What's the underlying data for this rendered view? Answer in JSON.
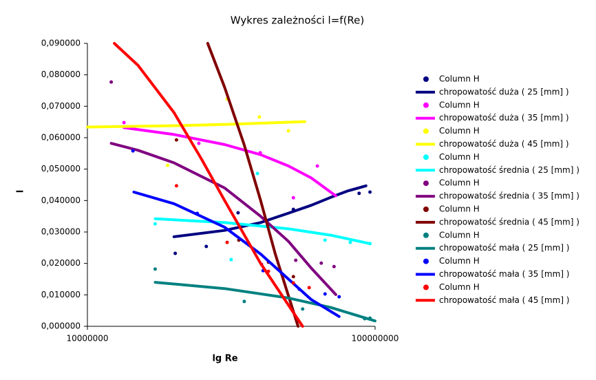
{
  "chart_data": {
    "type": "scatter",
    "title": "Wykres zależności l=f(Re)",
    "x_label": "lg Re",
    "y_label": "l",
    "x_log": true,
    "grid": false,
    "legend": "right",
    "xlim": [
      10000000,
      100000000
    ],
    "xticks": [
      10000000,
      100000000
    ],
    "ylim": [
      0,
      0.09
    ],
    "yticks": [
      {
        "value": 0,
        "label": "0,000000"
      },
      {
        "value": 0.01,
        "label": "0,010000"
      },
      {
        "value": 0.02,
        "label": "0,020000"
      },
      {
        "value": 0.03,
        "label": "0,030000"
      },
      {
        "value": 0.04,
        "label": "0,040000"
      },
      {
        "value": 0.05,
        "label": "0,050000"
      },
      {
        "value": 0.06,
        "label": "0,060000"
      },
      {
        "value": 0.07,
        "label": "0,070000"
      },
      {
        "value": 0.08,
        "label": "0,080000"
      },
      {
        "value": 0.09,
        "label": "0,090000"
      }
    ],
    "series": [
      {
        "name": "Column H",
        "color": "#000080",
        "line": false,
        "x": [
          20200000,
          25900000,
          33400000,
          52000000,
          88000000,
          96000000
        ],
        "values": [
          0.0232,
          0.0254,
          0.0361,
          0.0372,
          0.0423,
          0.0427
        ]
      },
      {
        "name": "chropowatość duża ( 25 [mm] )",
        "color": "#000080",
        "line": true,
        "x": [
          20000000,
          30000000,
          40000000,
          50000000,
          60000000,
          70000000,
          80000000,
          93000000
        ],
        "values": [
          0.0285,
          0.0305,
          0.033,
          0.036,
          0.0385,
          0.041,
          0.043,
          0.0447
        ]
      },
      {
        "name": "Column H",
        "color": "#ff00ff",
        "line": false,
        "x": [
          13400000,
          24400000,
          39900000,
          52000000,
          63000000
        ],
        "values": [
          0.0648,
          0.0582,
          0.0552,
          0.0409,
          0.051
        ]
      },
      {
        "name": "chropowatość duża ( 35 [mm] )",
        "color": "#ff00ff",
        "line": true,
        "x": [
          13400000,
          20000000,
          30000000,
          40000000,
          50000000,
          60000000,
          73000000
        ],
        "values": [
          0.0632,
          0.061,
          0.0578,
          0.0546,
          0.051,
          0.0472,
          0.0415
        ]
      },
      {
        "name": "Column H",
        "color": "#ffff00",
        "line": false,
        "x": [
          19000000,
          30600000,
          39600000,
          50000000
        ],
        "values": [
          0.0512,
          0.0723,
          0.0666,
          0.0622
        ]
      },
      {
        "name": "chropowatość duża ( 45 [mm] )",
        "color": "#ffff00",
        "line": true,
        "x": [
          10000000,
          20000000,
          30000000,
          40000000,
          57000000
        ],
        "values": [
          0.0634,
          0.0638,
          0.0642,
          0.0646,
          0.0651
        ]
      },
      {
        "name": "Column H",
        "color": "#00ffff",
        "line": false,
        "x": [
          17200000,
          31600000,
          39000000,
          67000000,
          82000000,
          96000000
        ],
        "values": [
          0.0326,
          0.0212,
          0.0486,
          0.0274,
          0.0267,
          0.0263
        ]
      },
      {
        "name": "chropowatość średnia ( 25 [mm] )",
        "color": "#00ffff",
        "line": true,
        "x": [
          17200000,
          30000000,
          50000000,
          70000000,
          96000000
        ],
        "values": [
          0.0342,
          0.033,
          0.031,
          0.029,
          0.0263
        ]
      },
      {
        "name": "Column H",
        "color": "#800080",
        "line": false,
        "x": [
          12100000,
          40300000,
          53000000,
          65000000,
          72000000
        ],
        "values": [
          0.0777,
          0.0197,
          0.021,
          0.0201,
          0.019
        ]
      },
      {
        "name": "chropowatość średnia ( 35 [mm] )",
        "color": "#800080",
        "line": true,
        "x": [
          12100000,
          15000000,
          20000000,
          30000000,
          40000000,
          50000000,
          60000000,
          73000000
        ],
        "values": [
          0.0582,
          0.056,
          0.052,
          0.044,
          0.035,
          0.027,
          0.0185,
          0.0101
        ]
      },
      {
        "name": "Column H",
        "color": "#800000",
        "line": false,
        "x": [
          20400000,
          33600000,
          42600000,
          52000000
        ],
        "values": [
          0.0593,
          0.0274,
          0.0204,
          0.0158
        ]
      },
      {
        "name": "chropowatość średnia ( 45 [mm] )",
        "color": "#800000",
        "line": true,
        "x": [
          26200000,
          30000000,
          35000000,
          40000000,
          45000000,
          54000000
        ],
        "values": [
          0.09,
          0.076,
          0.058,
          0.04,
          0.023,
          0
        ]
      },
      {
        "name": "Column H",
        "color": "#008080",
        "line": false,
        "x": [
          17200000,
          35100000,
          56000000,
          92000000,
          96000000
        ],
        "values": [
          0.0182,
          0.0079,
          0.0055,
          0.0024,
          0.0026
        ]
      },
      {
        "name": "chropowatość mała ( 25 [mm] )",
        "color": "#008080",
        "line": true,
        "x": [
          17200000,
          30000000,
          50000000,
          70000000,
          100000000
        ],
        "values": [
          0.014,
          0.012,
          0.009,
          0.006,
          0.0017
        ]
      },
      {
        "name": "Column H",
        "color": "#0000ff",
        "line": false,
        "x": [
          14400000,
          24100000,
          40800000,
          54500000,
          67000000,
          75000000
        ],
        "values": [
          0.0558,
          0.0359,
          0.0177,
          0.0118,
          0.0103,
          0.0094
        ]
      },
      {
        "name": "chropowatość mała ( 35 [mm] )",
        "color": "#0000ff",
        "line": true,
        "x": [
          14500000,
          20000000,
          30000000,
          40000000,
          50000000,
          60000000,
          75000000
        ],
        "values": [
          0.0427,
          0.039,
          0.0315,
          0.023,
          0.015,
          0.0085,
          0.0031
        ]
      },
      {
        "name": "Column H",
        "color": "#ff0000",
        "line": false,
        "x": [
          20400000,
          30600000,
          42600000,
          52000000,
          59000000
        ],
        "values": [
          0.0447,
          0.0267,
          0.0175,
          0.0138,
          0.0123
        ]
      },
      {
        "name": "chropowatość mała ( 45 [mm] )",
        "color": "#ff0000",
        "line": true,
        "x": [
          12400000,
          15000000,
          20000000,
          25000000,
          30000000,
          40000000,
          56000000
        ],
        "values": [
          0.09,
          0.083,
          0.068,
          0.053,
          0.04,
          0.02,
          0
        ]
      }
    ]
  }
}
